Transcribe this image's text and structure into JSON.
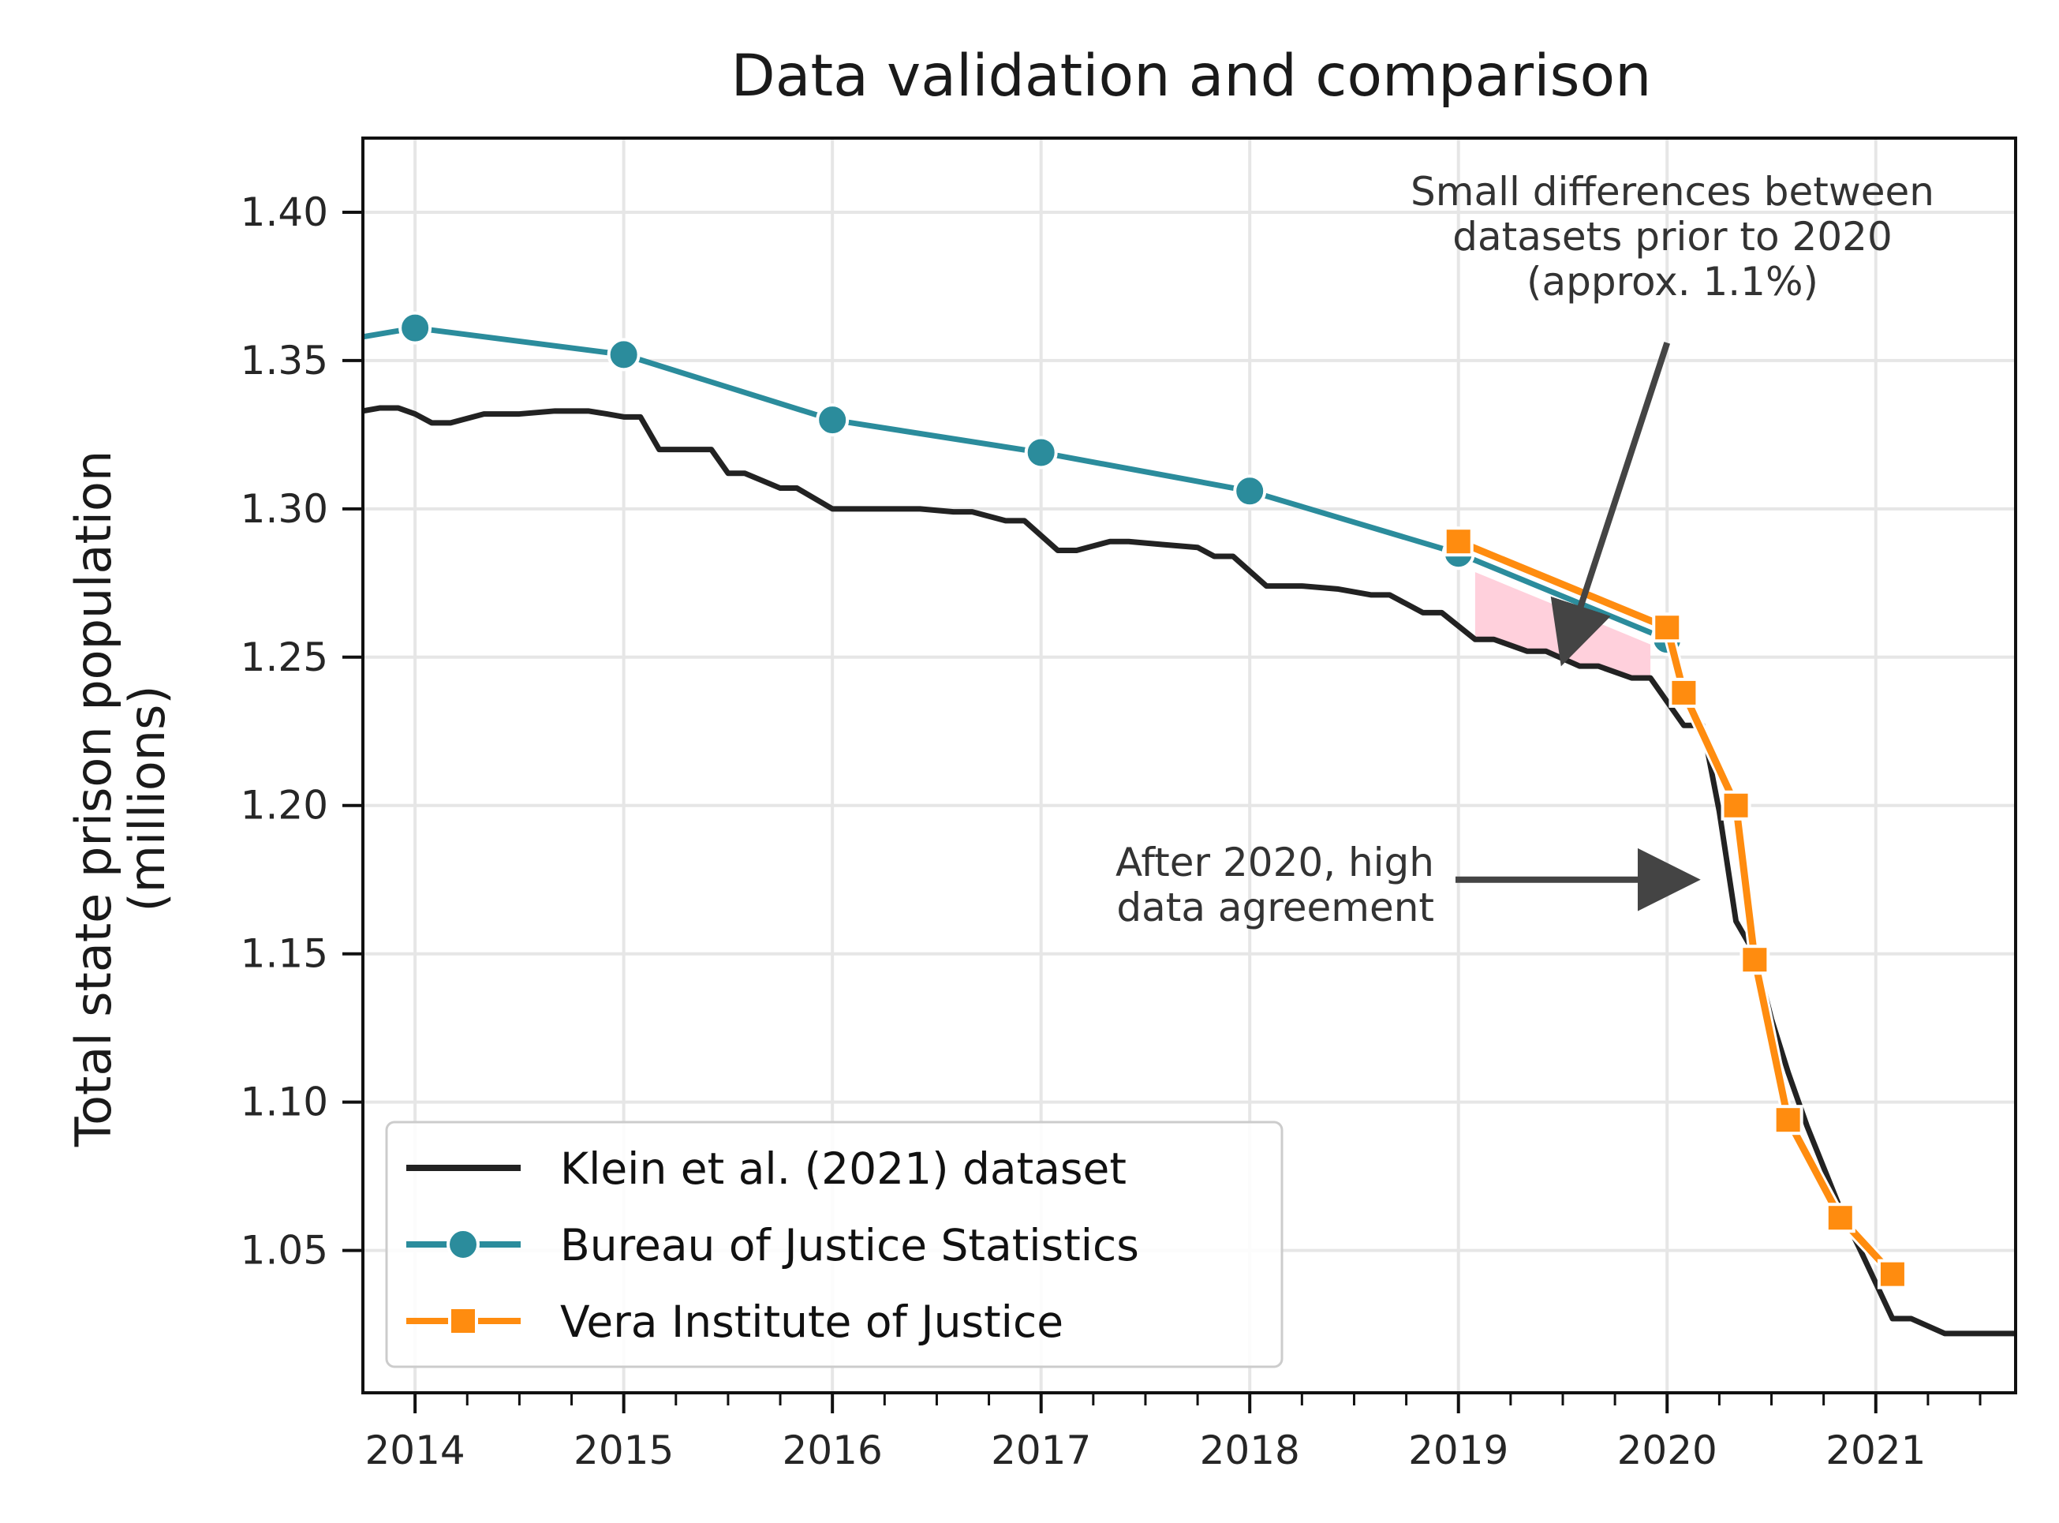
{
  "chart_data": {
    "type": "line",
    "title": "Data validation and comparison",
    "xlabel": "",
    "ylabel": "Total state prison population\n(millions)",
    "xlim": [
      2013.75,
      2021.67
    ],
    "ylim": [
      1.002,
      1.425
    ],
    "x_ticks": [
      2014,
      2015,
      2016,
      2017,
      2018,
      2019,
      2020,
      2021
    ],
    "x_tick_labels": [
      "2014",
      "2015",
      "2016",
      "2017",
      "2018",
      "2019",
      "2020",
      "2021"
    ],
    "x_minor_ticks": [
      2014.25,
      2014.5,
      2014.75,
      2015.25,
      2015.5,
      2015.75,
      2016.25,
      2016.5,
      2016.75,
      2017.25,
      2017.5,
      2017.75,
      2018.25,
      2018.5,
      2018.75,
      2019.25,
      2019.5,
      2019.75,
      2020.25,
      2020.5,
      2020.75,
      2021.25,
      2021.5
    ],
    "y_ticks": [
      1.05,
      1.1,
      1.15,
      1.2,
      1.25,
      1.3,
      1.35,
      1.4
    ],
    "y_tick_labels": [
      "1.05",
      "1.10",
      "1.15",
      "1.20",
      "1.25",
      "1.30",
      "1.35",
      "1.40"
    ],
    "grid": true,
    "legend_position": "lower-left",
    "series": [
      {
        "name": "Klein et al. (2021) dataset",
        "color": "#222222",
        "marker": "none",
        "points": [
          [
            2013.75,
            1.333
          ],
          [
            2013.83,
            1.334
          ],
          [
            2013.92,
            1.334
          ],
          [
            2014.0,
            1.332
          ],
          [
            2014.08,
            1.329
          ],
          [
            2014.17,
            1.329
          ],
          [
            2014.33,
            1.332
          ],
          [
            2014.5,
            1.332
          ],
          [
            2014.67,
            1.333
          ],
          [
            2014.83,
            1.333
          ],
          [
            2014.92,
            1.332
          ],
          [
            2015.0,
            1.331
          ],
          [
            2015.08,
            1.331
          ],
          [
            2015.17,
            1.32
          ],
          [
            2015.42,
            1.32
          ],
          [
            2015.5,
            1.312
          ],
          [
            2015.58,
            1.312
          ],
          [
            2015.75,
            1.307
          ],
          [
            2015.83,
            1.307
          ],
          [
            2016.0,
            1.3
          ],
          [
            2016.25,
            1.3
          ],
          [
            2016.42,
            1.3
          ],
          [
            2016.58,
            1.299
          ],
          [
            2016.67,
            1.299
          ],
          [
            2016.83,
            1.296
          ],
          [
            2016.92,
            1.296
          ],
          [
            2017.08,
            1.286
          ],
          [
            2017.17,
            1.286
          ],
          [
            2017.33,
            1.289
          ],
          [
            2017.42,
            1.289
          ],
          [
            2017.58,
            1.288
          ],
          [
            2017.75,
            1.287
          ],
          [
            2017.83,
            1.284
          ],
          [
            2017.92,
            1.284
          ],
          [
            2018.08,
            1.274
          ],
          [
            2018.25,
            1.274
          ],
          [
            2018.42,
            1.273
          ],
          [
            2018.58,
            1.271
          ],
          [
            2018.67,
            1.271
          ],
          [
            2018.83,
            1.265
          ],
          [
            2018.92,
            1.265
          ],
          [
            2019.08,
            1.256
          ],
          [
            2019.17,
            1.256
          ],
          [
            2019.33,
            1.252
          ],
          [
            2019.42,
            1.252
          ],
          [
            2019.58,
            1.247
          ],
          [
            2019.67,
            1.247
          ],
          [
            2019.83,
            1.243
          ],
          [
            2019.92,
            1.243
          ],
          [
            2020.08,
            1.227
          ],
          [
            2020.17,
            1.227
          ],
          [
            2020.25,
            1.198
          ],
          [
            2020.33,
            1.161
          ],
          [
            2020.42,
            1.15
          ],
          [
            2020.5,
            1.128
          ],
          [
            2020.58,
            1.11
          ],
          [
            2020.67,
            1.092
          ],
          [
            2020.75,
            1.078
          ],
          [
            2020.83,
            1.064
          ],
          [
            2020.92,
            1.051
          ],
          [
            2021.0,
            1.039
          ],
          [
            2021.08,
            1.027
          ],
          [
            2021.17,
            1.027
          ],
          [
            2021.33,
            1.022
          ],
          [
            2021.5,
            1.022
          ],
          [
            2021.67,
            1.022
          ]
        ]
      },
      {
        "name": "Bureau of Justice Statistics",
        "color": "#2b8c9c",
        "marker": "circle",
        "points": [
          [
            2013.75,
            1.358
          ],
          [
            2014.0,
            1.361
          ],
          [
            2015.0,
            1.352
          ],
          [
            2016.0,
            1.33
          ],
          [
            2017.0,
            1.319
          ],
          [
            2018.0,
            1.306
          ],
          [
            2019.0,
            1.285
          ],
          [
            2020.0,
            1.256
          ]
        ],
        "marker_x": [
          2014,
          2015,
          2016,
          2017,
          2018,
          2019,
          2020
        ]
      },
      {
        "name": "Vera Institute of Justice",
        "color": "#ff8c0f",
        "marker": "square",
        "points": [
          [
            2019.0,
            1.289
          ],
          [
            2020.0,
            1.26
          ],
          [
            2020.08,
            1.238
          ],
          [
            2020.33,
            1.2
          ],
          [
            2020.42,
            1.148
          ],
          [
            2020.58,
            1.094
          ],
          [
            2020.83,
            1.061
          ],
          [
            2021.08,
            1.042
          ]
        ]
      }
    ],
    "shaded_region": {
      "color": "#ffd0dc",
      "x_range": [
        2019.0,
        2019.92
      ]
    },
    "annotations": [
      {
        "text": "Small differences between\ndatasets prior to 2020\n(approx. 1.1%)",
        "anchor": "upper-right",
        "arrow_from": [
          2020.0,
          1.356
        ],
        "arrow_to": [
          2019.52,
          1.253
        ]
      },
      {
        "text": "After 2020, high\ndata agreement",
        "anchor": "middle",
        "arrow_from": [
          2019.0,
          1.175
        ],
        "arrow_to": [
          2020.07,
          1.175
        ]
      }
    ]
  }
}
